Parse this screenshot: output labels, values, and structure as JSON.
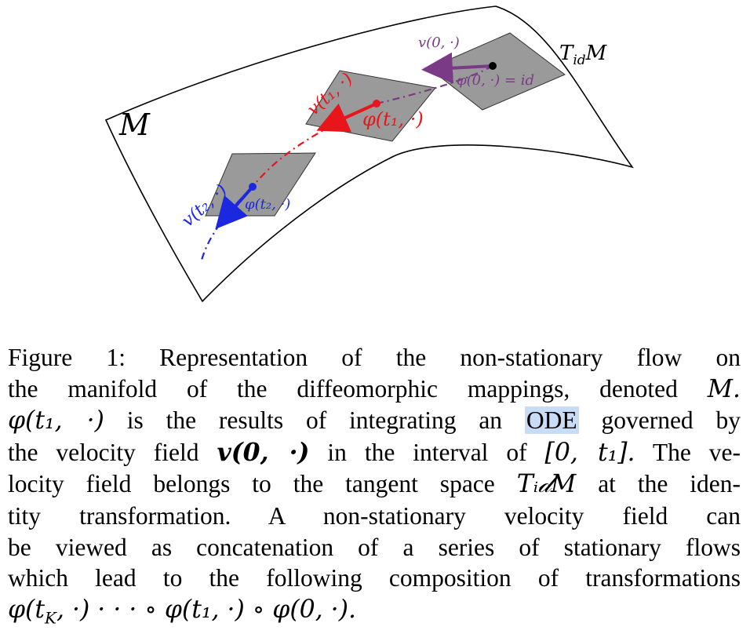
{
  "figure": {
    "manifold_label": "M",
    "tangent_label": "T",
    "tangent_sub": "id",
    "tangent_manifold": "M",
    "v0_label": "v(0, ·)",
    "phi0_label": "φ(0, ·) = id",
    "v1_label": "v(t₁, ·)",
    "phi1_label": "φ(t₁, ·)",
    "v2_label": "v(t₂, ·)",
    "phi2_label": "φ(t₂, ·)",
    "colors": {
      "purple": "#7a3a86",
      "red": "#e8151b",
      "blue": "#1b28e0",
      "plane": "#9a9a9a"
    }
  },
  "caption": {
    "line1_prefix": "Figure 1:",
    "line1_text": "Representation of the non-stationary flow on",
    "line2_text": "the manifold of the diffeomorphic mappings, denoted",
    "line2_symbol": "M.",
    "line3_math": "φ(t₁, ·)",
    "line3_text_a": "is the results of integrating an",
    "line3_highlight": "ODE",
    "line3_text_b": "governed by",
    "line4_text_a": "the velocity field",
    "line4_math": "v(0, ·)",
    "line4_text_b": "in the interval of",
    "line4_interval": "[0, t₁].",
    "line4_text_c": "The ve-",
    "line5_text_a": "locity field belongs to the tangent space",
    "line5_math": "Tᵢ𝒹M",
    "line5_text_b": "at the iden-",
    "line6_text": "tity transformation.  A non-stationary velocity field can",
    "line7_text": "be viewed as concatenation of a series of stationary flows",
    "line8_text": "which lead to the following composition of transformations",
    "line9_math": "φ(t",
    "line9_sub": "K",
    "line9_math_rest": ", ·) · · · ∘ φ(t₁, ·) ∘ φ(0, ·)."
  }
}
